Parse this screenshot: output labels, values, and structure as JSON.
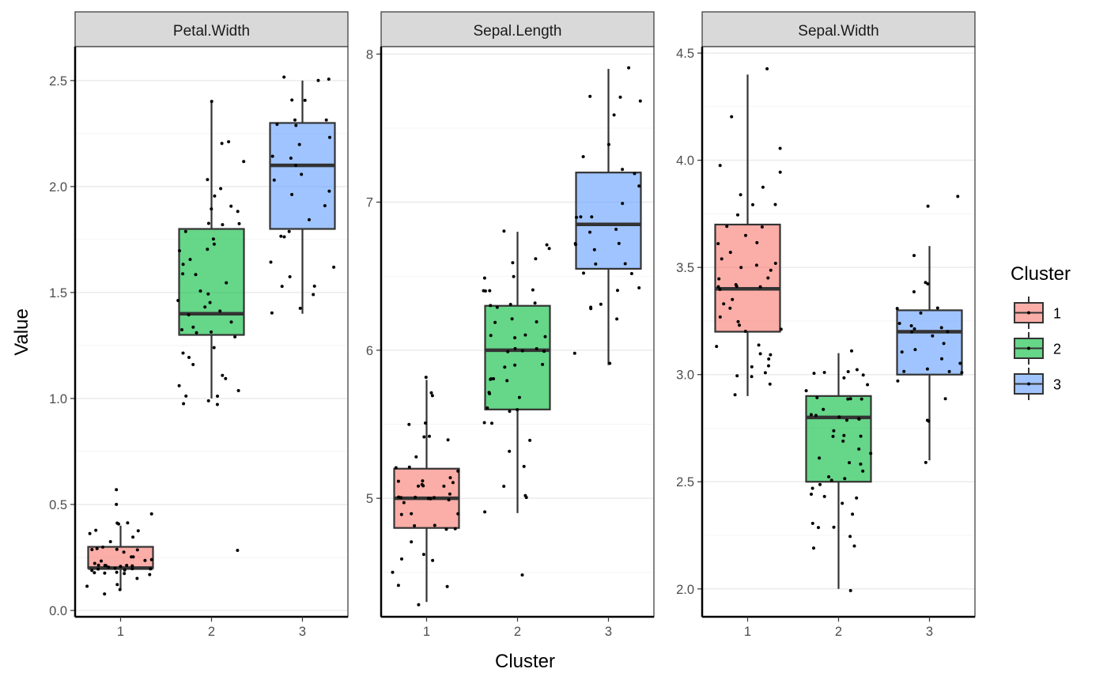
{
  "chart_data": {
    "type": "boxplot",
    "xlabel": "Cluster",
    "ylabel": "Value",
    "categories": [
      "1",
      "2",
      "3"
    ],
    "colors": {
      "1": "#F8766D",
      "2": "#00BA38",
      "3": "#619CFF"
    },
    "grid": true,
    "legend": {
      "title": "Cluster",
      "placement": "right",
      "entries": [
        "1",
        "2",
        "3"
      ]
    },
    "facets": [
      {
        "title": "Petal.Width",
        "ylim": [
          -0.03,
          2.66
        ],
        "y_ticks": [
          0.0,
          0.5,
          1.0,
          1.5,
          2.0,
          2.5
        ],
        "y_tick_labels": [
          "0.0",
          "0.5",
          "1.0",
          "1.5",
          "2.0",
          "2.5"
        ],
        "boxes": [
          {
            "cluster": "1",
            "min": 0.1,
            "q1": 0.2,
            "median": 0.2,
            "q3": 0.3,
            "max": 0.4
          },
          {
            "cluster": "2",
            "min": 1.0,
            "q1": 1.3,
            "median": 1.4,
            "q3": 1.8,
            "max": 2.4
          },
          {
            "cluster": "3",
            "min": 1.4,
            "q1": 1.8,
            "median": 2.1,
            "q3": 2.3,
            "max": 2.5
          }
        ],
        "points": [
          {
            "cluster": "1",
            "values": [
              0.1,
              0.17,
              0.18,
              0.2,
              0.21,
              0.22,
              0.24,
              0.2,
              0.2,
              0.19,
              0.2,
              0.21,
              0.22,
              0.23,
              0.2,
              0.19,
              0.21,
              0.28,
              0.27,
              0.3,
              0.32,
              0.3,
              0.31,
              0.4,
              0.41,
              0.38,
              0.37,
              0.4,
              0.36,
              0.35,
              0.45,
              0.5,
              0.58,
              0.12,
              0.07,
              0.14,
              0.22,
              0.25,
              0.18,
              0.29,
              0.16,
              0.2,
              0.23,
              0.26,
              0.19,
              0.11
            ]
          },
          {
            "cluster": "2",
            "values": [
              0.97,
              0.99,
              1.0,
              1.01,
              1.02,
              1.03,
              1.05,
              1.1,
              1.12,
              1.17,
              1.18,
              1.2,
              1.25,
              1.28,
              1.3,
              1.31,
              1.32,
              1.33,
              1.35,
              1.38,
              1.4,
              1.42,
              1.45,
              1.47,
              1.5,
              1.52,
              1.55,
              1.58,
              1.6,
              1.62,
              1.65,
              1.7,
              1.7,
              1.74,
              1.75,
              1.8,
              1.82,
              1.83,
              1.84,
              1.88,
              1.9,
              1.92,
              1.97,
              2.0,
              2.02,
              2.12,
              2.2,
              2.22,
              2.4,
              0.29
            ]
          },
          {
            "cluster": "3",
            "values": [
              1.4,
              1.44,
              1.48,
              1.52,
              1.53,
              1.56,
              1.62,
              1.64,
              1.77,
              1.77,
              1.8,
              1.84,
              1.9,
              1.96,
              1.98,
              2.02,
              2.05,
              2.1,
              2.12,
              2.15,
              2.2,
              2.22,
              2.28,
              2.3,
              2.3,
              2.3,
              2.4,
              2.4,
              2.5,
              2.52,
              2.52
            ]
          }
        ]
      },
      {
        "title": "Sepal.Length",
        "ylim": [
          4.2,
          8.05
        ],
        "y_ticks": [
          5,
          6,
          7,
          8
        ],
        "y_tick_labels": [
          "5",
          "6",
          "7",
          "8"
        ],
        "boxes": [
          {
            "cluster": "1",
            "min": 4.3,
            "q1": 4.8,
            "median": 5.0,
            "q3": 5.2,
            "max": 5.8
          },
          {
            "cluster": "2",
            "min": 4.9,
            "q1": 5.6,
            "median": 6.0,
            "q3": 6.3,
            "max": 6.8
          },
          {
            "cluster": "3",
            "min": 5.9,
            "q1": 6.55,
            "median": 6.85,
            "q3": 7.2,
            "max": 7.9
          }
        ],
        "points": [
          {
            "cluster": "1",
            "values": [
              4.3,
              4.4,
              4.4,
              4.6,
              4.6,
              4.7,
              4.8,
              4.8,
              4.8,
              4.9,
              4.9,
              4.9,
              5.0,
              5.0,
              5.0,
              5.0,
              5.0,
              5.0,
              5.1,
              5.1,
              5.1,
              5.1,
              5.1,
              5.1,
              5.2,
              5.2,
              5.3,
              5.4,
              5.4,
              5.4,
              5.5,
              5.5,
              5.7,
              5.7,
              5.8,
              4.5,
              4.6,
              4.8,
              5.0,
              5.1,
              5.2,
              4.95,
              5.05,
              5.15
            ]
          },
          {
            "cluster": "2",
            "values": [
              4.5,
              4.9,
              5.0,
              5.0,
              5.1,
              5.2,
              5.4,
              5.5,
              5.5,
              5.6,
              5.6,
              5.7,
              5.7,
              5.7,
              5.8,
              5.8,
              5.8,
              5.9,
              5.9,
              6.0,
              6.0,
              6.0,
              6.0,
              6.1,
              6.1,
              6.1,
              6.2,
              6.2,
              6.3,
              6.3,
              6.3,
              6.3,
              6.4,
              6.4,
              6.4,
              6.5,
              6.5,
              6.6,
              6.6,
              6.7,
              6.7,
              6.8,
              6.1,
              5.9,
              5.6,
              6.2,
              6.0,
              5.8,
              6.4,
              5.3
            ]
          },
          {
            "cluster": "3",
            "values": [
              5.9,
              6.0,
              6.2,
              6.3,
              6.3,
              6.4,
              6.5,
              6.5,
              6.6,
              6.7,
              6.7,
              6.7,
              6.7,
              6.8,
              6.8,
              6.9,
              6.9,
              6.9,
              7.0,
              7.1,
              7.2,
              7.2,
              7.3,
              7.4,
              7.6,
              7.7,
              7.7,
              7.7,
              7.9,
              6.3,
              6.6,
              6.4
            ]
          }
        ]
      },
      {
        "title": "Sepal.Width",
        "ylim": [
          1.87,
          4.53
        ],
        "y_ticks": [
          2.0,
          2.5,
          3.0,
          3.5,
          4.0,
          4.5
        ],
        "y_tick_labels": [
          "2.0",
          "2.5",
          "3.0",
          "3.5",
          "4.0",
          "4.5"
        ],
        "boxes": [
          {
            "cluster": "1",
            "min": 2.9,
            "q1": 3.2,
            "median": 3.4,
            "q3": 3.7,
            "max": 4.4
          },
          {
            "cluster": "2",
            "min": 2.0,
            "q1": 2.5,
            "median": 2.8,
            "q3": 2.9,
            "max": 3.1
          },
          {
            "cluster": "3",
            "min": 2.6,
            "q1": 3.0,
            "median": 3.2,
            "q3": 3.3,
            "max": 3.6
          }
        ],
        "points": [
          {
            "cluster": "1",
            "values": [
              2.9,
              2.97,
              3.0,
              3.0,
              3.0,
              3.03,
              3.08,
              3.1,
              3.1,
              3.14,
              3.2,
              3.2,
              3.22,
              3.24,
              3.3,
              3.32,
              3.35,
              3.4,
              3.4,
              3.4,
              3.4,
              3.42,
              3.45,
              3.5,
              3.5,
              3.5,
              3.52,
              3.57,
              3.6,
              3.62,
              3.7,
              3.7,
              3.75,
              3.8,
              3.8,
              3.85,
              3.88,
              3.93,
              3.98,
              4.07,
              4.19,
              4.42,
              3.15,
              3.26,
              3.44,
              3.55,
              3.05,
              3.65
            ]
          },
          {
            "cluster": "2",
            "values": [
              1.98,
              2.19,
              2.2,
              2.23,
              2.29,
              2.3,
              2.3,
              2.4,
              2.42,
              2.42,
              2.46,
              2.5,
              2.5,
              2.5,
              2.52,
              2.6,
              2.6,
              2.62,
              2.7,
              2.7,
              2.72,
              2.75,
              2.8,
              2.8,
              2.8,
              2.8,
              2.82,
              2.85,
              2.9,
              2.9,
              2.9,
              2.92,
              2.98,
              3.0,
              3.0,
              3.0,
              3.02,
              3.03,
              3.1,
              2.55,
              2.65,
              2.68,
              2.88,
              2.35,
              2.45,
              2.95,
              2.58,
              2.78
            ]
          },
          {
            "cluster": "3",
            "values": [
              2.58,
              2.78,
              2.8,
              2.9,
              2.98,
              3.0,
              3.0,
              3.0,
              3.02,
              3.06,
              3.1,
              3.12,
              3.18,
              3.2,
              3.2,
              3.2,
              3.22,
              3.22,
              3.28,
              3.3,
              3.3,
              3.4,
              3.42,
              3.43,
              3.57,
              3.8,
              3.82,
              3.15,
              3.25,
              3.08
            ]
          }
        ]
      }
    ]
  }
}
